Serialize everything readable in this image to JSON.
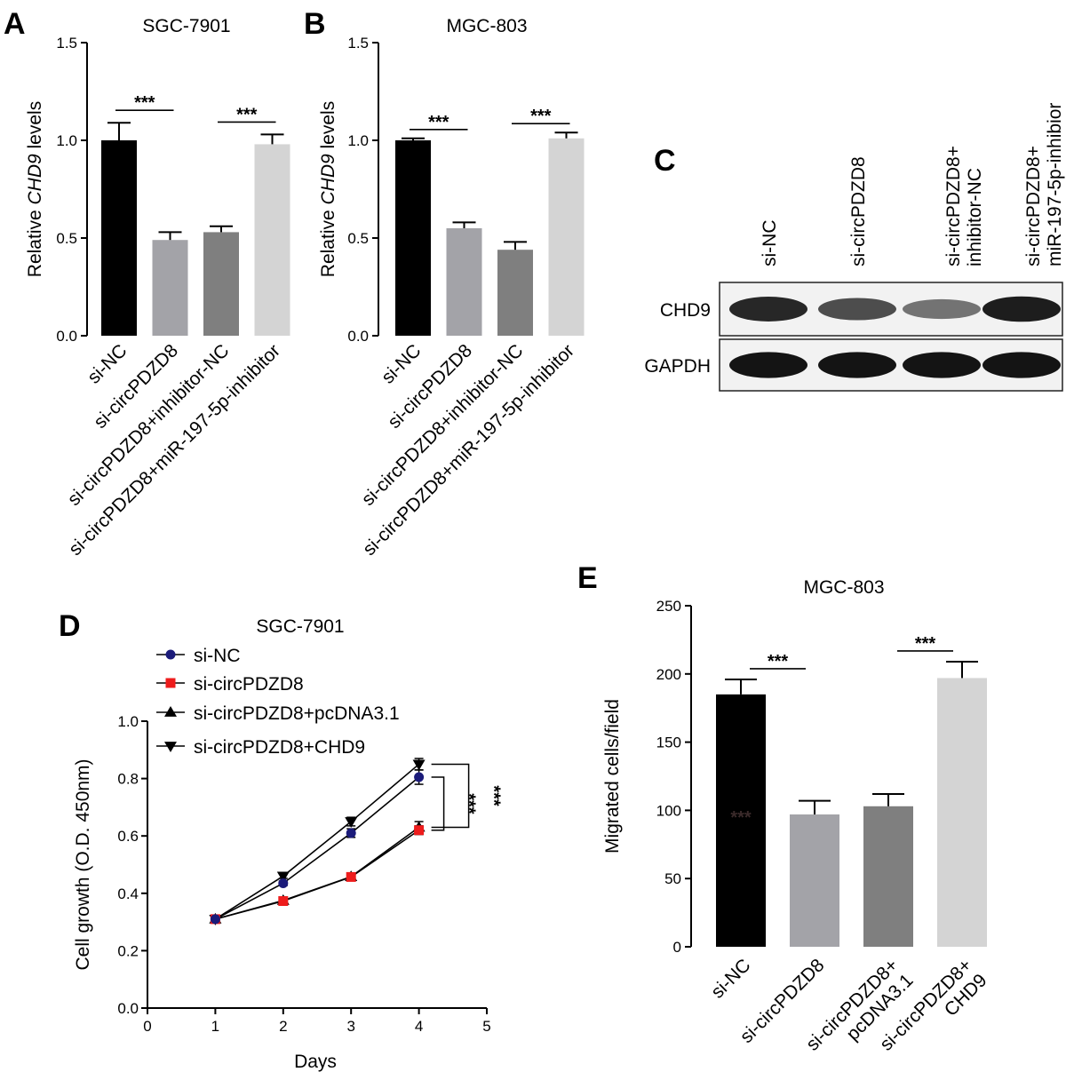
{
  "panels": {
    "A": {
      "label": "A"
    },
    "B": {
      "label": "B"
    },
    "C": {
      "label": "C"
    },
    "D": {
      "label": "D"
    },
    "E": {
      "label": "E"
    }
  },
  "western_blot": {
    "lanes": [
      "si-NC",
      "si-circPDZD8",
      "si-circPDZD8+ inhibitor-NC",
      "si-circPDZD8+ miR-197-5p-inhibior"
    ],
    "rows": [
      "CHD9",
      "GAPDH"
    ],
    "band_intensity": {
      "CHD9": [
        0.85,
        0.65,
        0.45,
        0.9
      ],
      "GAPDH": [
        0.95,
        0.95,
        0.95,
        0.95
      ]
    }
  },
  "chart_data": [
    {
      "panel": "A",
      "type": "bar",
      "title": "SGC-7901",
      "ylabel": "Relative CHD9 levels",
      "ylabel_prefix": "Relative ",
      "ylabel_italic": "CHD9",
      "ylabel_suffix": " levels",
      "ylim": [
        0,
        1.5
      ],
      "yticks": [
        "0.0",
        "0.5",
        "1.0",
        "1.5"
      ],
      "categories": [
        "si-NC",
        "si-circPDZD8",
        "si-circPDZD8+inhibitor-NC",
        "si-circPDZD8+miR-197-5p-inhibitor"
      ],
      "values": [
        1.0,
        0.49,
        0.53,
        0.98
      ],
      "errors": [
        0.09,
        0.04,
        0.03,
        0.05
      ],
      "colors": [
        "#000000",
        "#a3a3a8",
        "#7f7f7f",
        "#d4d4d4"
      ],
      "significance": [
        {
          "from": 0,
          "to": 1,
          "label": "***"
        },
        {
          "from": 2,
          "to": 3,
          "label": "***"
        }
      ]
    },
    {
      "panel": "B",
      "type": "bar",
      "title": "MGC-803",
      "ylabel": "Relative CHD9 levels",
      "ylabel_prefix": "Relative ",
      "ylabel_italic": "CHD9",
      "ylabel_suffix": " levels",
      "ylim": [
        0,
        1.5
      ],
      "yticks": [
        "0.0",
        "0.5",
        "1.0",
        "1.5"
      ],
      "categories": [
        "si-NC",
        "si-circPDZD8",
        "si-circPDZD8+inhibitor-NC",
        "si-circPDZD8+miR-197-5p-inhibitor"
      ],
      "values": [
        1.0,
        0.55,
        0.44,
        1.01
      ],
      "errors": [
        0.01,
        0.03,
        0.04,
        0.03
      ],
      "colors": [
        "#000000",
        "#a3a3a8",
        "#7f7f7f",
        "#d4d4d4"
      ],
      "significance": [
        {
          "from": 0,
          "to": 1,
          "label": "***"
        },
        {
          "from": 2,
          "to": 3,
          "label": "***"
        }
      ]
    },
    {
      "panel": "D",
      "type": "line",
      "title": "SGC-7901",
      "xlabel": "Days",
      "ylabel": "Cell growth (O.D. 450nm)",
      "xlim": [
        0,
        5
      ],
      "ylim": [
        0,
        1.0
      ],
      "xticks": [
        "0",
        "1",
        "2",
        "3",
        "4",
        "5"
      ],
      "yticks": [
        "0.0",
        "0.2",
        "0.4",
        "0.6",
        "0.8",
        "1.0"
      ],
      "x": [
        1,
        2,
        3,
        4
      ],
      "series": [
        {
          "name": "si-NC",
          "values": [
            0.31,
            0.435,
            0.61,
            0.805
          ],
          "errors": [
            0.005,
            0.008,
            0.015,
            0.025
          ],
          "color": "#1b1b7a",
          "marker": "circle"
        },
        {
          "name": "si-circPDZD8",
          "values": [
            0.31,
            0.373,
            0.457,
            0.62
          ],
          "errors": [
            0.005,
            0.006,
            0.008,
            0.015
          ],
          "color": "#ee1c1c",
          "marker": "square"
        },
        {
          "name": "si-circPDZD8+pcDNA3.1",
          "values": [
            0.31,
            0.375,
            0.458,
            0.63
          ],
          "errors": [
            0.005,
            0.006,
            0.008,
            0.02
          ],
          "color": "#000000",
          "marker": "triangle-up"
        },
        {
          "name": "si-circPDZD8+CHD9",
          "values": [
            0.31,
            0.46,
            0.65,
            0.85
          ],
          "errors": [
            0.005,
            0.008,
            0.015,
            0.02
          ],
          "color": "#000000",
          "marker": "triangle-down"
        }
      ],
      "significance": [
        {
          "label": "***"
        },
        {
          "label": "***"
        }
      ]
    },
    {
      "panel": "E",
      "type": "bar",
      "title": "MGC-803",
      "ylabel": "Migrated cells/field",
      "ylim": [
        0,
        250
      ],
      "yticks": [
        "0",
        "50",
        "100",
        "150",
        "200",
        "250"
      ],
      "categories": [
        "si-NC",
        "si-circPDZD8",
        "si-circPDZD8+ pcDNA3.1",
        "si-circPDZD8+ CHD9"
      ],
      "values": [
        185,
        97,
        103,
        197
      ],
      "errors": [
        11,
        10,
        9,
        12
      ],
      "colors": [
        "#000000",
        "#a3a3a8",
        "#7f7f7f",
        "#d4d4d4"
      ],
      "significance": [
        {
          "from": 0,
          "to": 1,
          "label": "***"
        },
        {
          "from": 2,
          "to": 3,
          "label": "***"
        }
      ],
      "stray_annotation": "***"
    }
  ]
}
